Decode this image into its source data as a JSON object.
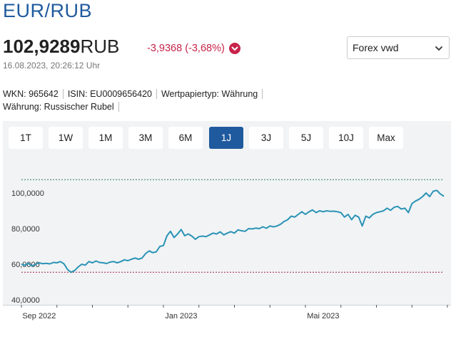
{
  "header": {
    "title": "EUR/RUB",
    "price_value": "102,9289",
    "price_currency": "RUB",
    "change": "-3,9368 (-3,68%)",
    "timestamp": "16.08.2023, 20:26:12 Uhr",
    "exchange_selected": "Forex vwd"
  },
  "meta": {
    "wkn": "WKN: 965642",
    "isin": "ISIN: EU0009656420",
    "type": "Wertpapiertyp: Währung",
    "currency": "Währung: Russischer Rubel"
  },
  "range_tabs": [
    {
      "label": "1T",
      "active": false
    },
    {
      "label": "1W",
      "active": false
    },
    {
      "label": "1M",
      "active": false
    },
    {
      "label": "3M",
      "active": false
    },
    {
      "label": "6M",
      "active": false
    },
    {
      "label": "1J",
      "active": true
    },
    {
      "label": "3J",
      "active": false
    },
    {
      "label": "5J",
      "active": false
    },
    {
      "label": "10J",
      "active": false
    },
    {
      "label": "Max",
      "active": false
    }
  ],
  "colors": {
    "accent": "#1f5a9e",
    "negative": "#c8234a",
    "line": "#2a93b5",
    "high_line": "#2e7d57",
    "low_line": "#a3233e"
  },
  "icons": {
    "change_direction": "arrow-down-circle-icon",
    "select": "chevron-down-icon"
  },
  "chart_data": {
    "type": "line",
    "y_tick_labels": [
      "40,0000",
      "60,0000",
      "80,0000",
      "100,0000"
    ],
    "y_ticks": [
      40,
      60,
      80,
      100
    ],
    "x_tick_labels": [
      "Sep 2022",
      "Jan 2023",
      "Mai 2023"
    ],
    "x_ticks": [
      0.5,
      4.5,
      8.5
    ],
    "x_range": [
      0,
      11.9
    ],
    "ylim": [
      40,
      110
    ],
    "reference_lines": {
      "high": 107.5,
      "low": 55.5
    },
    "grid": false,
    "legend": "none",
    "series": [
      {
        "x": [
          0.0,
          0.1,
          0.2,
          0.3,
          0.4,
          0.5,
          0.6,
          0.7,
          0.8,
          0.9,
          1.0,
          1.1,
          1.2,
          1.3,
          1.4,
          1.5,
          1.6,
          1.7,
          1.8,
          1.9,
          2.0,
          2.1,
          2.2,
          2.3,
          2.4,
          2.5,
          2.6,
          2.7,
          2.8,
          2.9,
          3.0,
          3.1,
          3.2,
          3.3,
          3.4,
          3.5,
          3.6,
          3.7,
          3.8,
          3.9,
          4.0,
          4.1,
          4.2,
          4.3,
          4.4,
          4.5,
          4.6,
          4.7,
          4.8,
          4.9,
          5.0,
          5.1,
          5.2,
          5.3,
          5.4,
          5.5,
          5.6,
          5.7,
          5.8,
          5.9,
          6.0,
          6.1,
          6.2,
          6.3,
          6.4,
          6.5,
          6.6,
          6.7,
          6.8,
          6.9,
          7.0,
          7.1,
          7.2,
          7.3,
          7.4,
          7.5,
          7.6,
          7.7,
          7.8,
          7.9,
          8.0,
          8.1,
          8.2,
          8.3,
          8.4,
          8.5,
          8.6,
          8.7,
          8.8,
          8.9,
          9.0,
          9.1,
          9.2,
          9.3,
          9.4,
          9.5,
          9.6,
          9.7,
          9.8,
          9.9,
          10.0,
          10.1,
          10.2,
          10.3,
          10.4,
          10.5,
          10.6,
          10.7,
          10.8,
          10.9,
          11.0,
          11.1,
          11.2,
          11.3,
          11.4,
          11.5,
          11.6,
          11.7,
          11.8,
          11.9
        ],
        "values": [
          60.0,
          59.5,
          60.5,
          59.0,
          60.0,
          60.8,
          60.3,
          60.5,
          60.2,
          61.0,
          60.8,
          61.5,
          60.2,
          57.0,
          55.5,
          56.5,
          58.5,
          60.0,
          59.5,
          61.5,
          60.8,
          61.8,
          61.0,
          60.8,
          60.4,
          61.2,
          61.5,
          60.8,
          61.5,
          62.5,
          62.0,
          62.8,
          63.5,
          62.8,
          63.5,
          66.0,
          67.5,
          66.5,
          67.0,
          70.0,
          70.5,
          76.0,
          78.5,
          75.0,
          77.0,
          79.5,
          76.0,
          77.0,
          75.8,
          74.0,
          75.5,
          75.8,
          75.5,
          76.5,
          77.5,
          77.0,
          78.2,
          76.5,
          77.5,
          78.3,
          77.5,
          79.3,
          78.8,
          78.5,
          80.0,
          79.8,
          80.3,
          80.0,
          81.0,
          80.2,
          81.5,
          81.0,
          81.5,
          82.5,
          84.0,
          85.0,
          87.0,
          86.5,
          88.0,
          89.5,
          88.0,
          89.5,
          90.5,
          89.0,
          90.0,
          89.5,
          90.0,
          89.7,
          89.8,
          89.5,
          89.0,
          86.5,
          88.0,
          85.0,
          87.5,
          86.5,
          81.5,
          87.0,
          86.0,
          88.0,
          89.0,
          89.5,
          90.0,
          91.5,
          90.3,
          92.0,
          92.5,
          91.0,
          91.5,
          89.0,
          94.0,
          95.5,
          96.5,
          98.0,
          100.0,
          98.0,
          101.0,
          101.5,
          99.5,
          98.2
        ]
      }
    ]
  }
}
